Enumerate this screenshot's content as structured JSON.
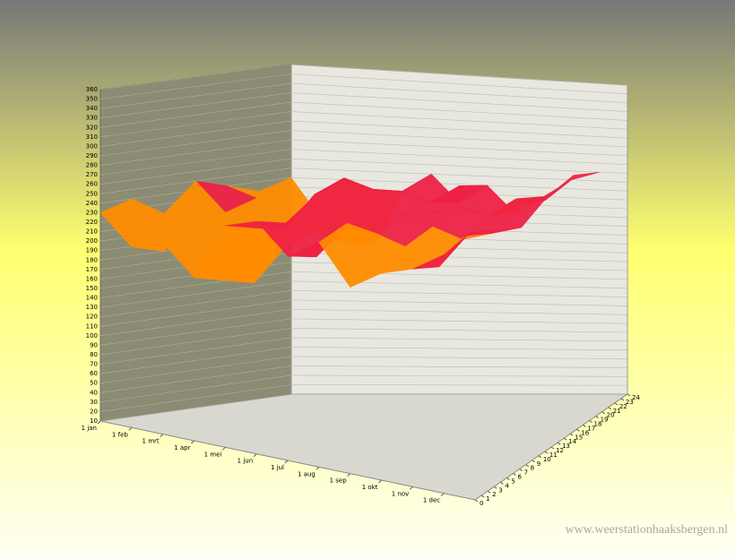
{
  "chart_data": {
    "type": "surface3d",
    "categories": [
      "1 jan",
      "1 feb",
      "1 mrt",
      "1 apr",
      "1 mei",
      "1 jun",
      "1 jul",
      "1 aug",
      "1 sep",
      "1 okt",
      "1 nov",
      "1 dec"
    ],
    "z": [
      0,
      4,
      8,
      12,
      16,
      20,
      24
    ],
    "values": [
      [
        230,
        200,
        210,
        180,
        240,
        250,
        220,
        240,
        200,
        220,
        230,
        250
      ],
      [
        240,
        190,
        220,
        170,
        230,
        240,
        210,
        250,
        210,
        230,
        220,
        260
      ],
      [
        220,
        210,
        200,
        160,
        220,
        260,
        230,
        230,
        220,
        210,
        240,
        250
      ],
      [
        250,
        220,
        210,
        190,
        250,
        270,
        240,
        240,
        230,
        220,
        230,
        240
      ],
      [
        240,
        230,
        190,
        200,
        260,
        250,
        250,
        230,
        240,
        230,
        250,
        260
      ],
      [
        230,
        210,
        200,
        180,
        240,
        240,
        230,
        250,
        220,
        240,
        240,
        270
      ],
      [
        240,
        200,
        220,
        170,
        230,
        250,
        220,
        240,
        210,
        230,
        250,
        260
      ]
    ],
    "ylim": [
      10,
      360
    ],
    "yticks": [
      10,
      20,
      30,
      40,
      50,
      60,
      70,
      80,
      90,
      100,
      110,
      120,
      130,
      140,
      150,
      160,
      170,
      180,
      190,
      200,
      210,
      220,
      230,
      240,
      250,
      260,
      270,
      280,
      290,
      300,
      310,
      320,
      330,
      340,
      350,
      360
    ],
    "zlim": [
      0,
      24
    ],
    "zticks": [
      0,
      1,
      2,
      3,
      4,
      5,
      6,
      7,
      8,
      9,
      10,
      11,
      12,
      13,
      14,
      15,
      16,
      17,
      18,
      19,
      20,
      21,
      22,
      23,
      24
    ],
    "colors": [
      "#8f8fff",
      "#a8c8f0",
      "#e0ffb0",
      "#ffee55",
      "#ff8c00",
      "#ee2244",
      "#cc1199",
      "#9a66ff"
    ],
    "watermark": "www.weerstationhaaksbergen.nl"
  }
}
